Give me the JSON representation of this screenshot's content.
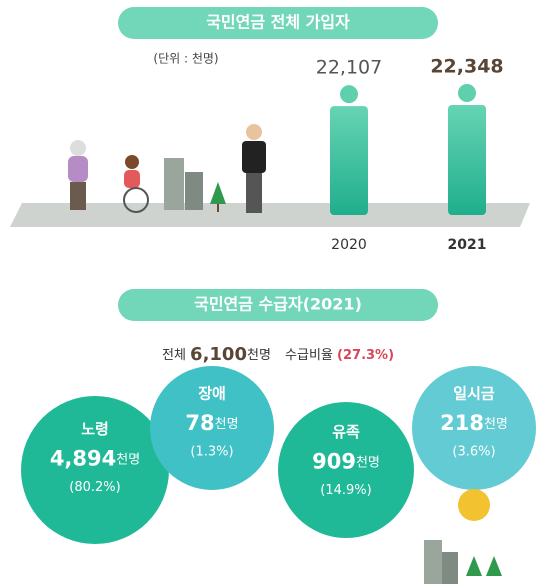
{
  "section1": {
    "title": "국민연금 전체 가입자",
    "unit": "(단위 : 천명)",
    "bars": {
      "categories": [
        "2020",
        "2021"
      ],
      "values": [
        22107,
        22348
      ],
      "value_labels": [
        "22,107",
        "22,348"
      ]
    }
  },
  "section2": {
    "title": "국민연금 수급자(2021)",
    "total_prefix": "전체",
    "total": "6,100",
    "total_unit": "천명",
    "ratio_label": "수급비율",
    "ratio": "(27.3%)",
    "groups": [
      {
        "name": "노령",
        "count": "4,894",
        "unit": "천명",
        "share": "(80.2%)"
      },
      {
        "name": "장애",
        "count": "78",
        "unit": "천명",
        "share": "(1.3%)"
      },
      {
        "name": "유족",
        "count": "909",
        "unit": "천명",
        "share": "(14.9%)"
      },
      {
        "name": "일시금",
        "count": "218",
        "unit": "천명",
        "share": "(3.6%)"
      }
    ]
  }
}
